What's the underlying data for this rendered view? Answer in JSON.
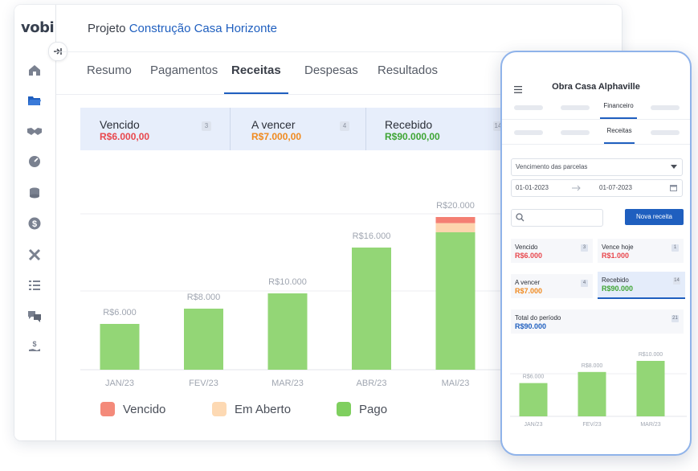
{
  "desktop": {
    "logo": "vobi",
    "project_prefix": "Projeto",
    "project_name": "Construção Casa Horizonte",
    "tabs": [
      {
        "label": "Resumo"
      },
      {
        "label": "Pagamentos"
      },
      {
        "label": "Receitas",
        "active": true
      },
      {
        "label": "Despesas"
      },
      {
        "label": "Resultados"
      }
    ],
    "sidebar_icons": [
      "home-icon",
      "folder-icon",
      "handshake-icon",
      "gauge-icon",
      "coins-icon",
      "dollar-icon",
      "tools-icon",
      "list-icon",
      "chat-icon",
      "money-hand-icon"
    ],
    "status_cards": [
      {
        "label": "Vencido",
        "value": "R$6.000,00",
        "count": "3",
        "color": "#e8474d"
      },
      {
        "label": "A vencer",
        "value": "R$7.000,00",
        "count": "4",
        "color": "#f08a1f"
      },
      {
        "label": "Recebido",
        "value": "R$90.000,00",
        "count": "14",
        "color": "#3fa535"
      }
    ],
    "legend": [
      {
        "label": "Vencido",
        "color": "#f48a7a"
      },
      {
        "label": "Em Aberto",
        "color": "#fdd9b3"
      },
      {
        "label": "Pago",
        "color": "#7fcf5f"
      }
    ]
  },
  "chart_data": [
    {
      "type": "bar",
      "categories": [
        "JAN/23",
        "FEV/23",
        "MAR/23",
        "ABR/23",
        "MAI/23"
      ],
      "data_labels": [
        "R$6.000",
        "R$8.000",
        "R$10.000",
        "R$16.000",
        "R$20.000"
      ],
      "series": [
        {
          "name": "Pago",
          "color": "#93d676",
          "values": [
            6000,
            8000,
            10000,
            16000,
            18000
          ]
        },
        {
          "name": "Em Aberto",
          "color": "#fdd5ae",
          "values": [
            0,
            0,
            0,
            0,
            1200
          ]
        },
        {
          "name": "Vencido",
          "color": "#f47f73",
          "values": [
            0,
            0,
            0,
            0,
            800
          ]
        }
      ],
      "ylim": [
        0,
        20000
      ],
      "grid": true
    },
    {
      "type": "bar",
      "categories": [
        "JAN/23",
        "FEV/23",
        "MAR/23"
      ],
      "data_labels": [
        "R$6.000",
        "R$8.000",
        "R$10.000"
      ],
      "series": [
        {
          "name": "Pago",
          "color": "#93d676",
          "values": [
            6000,
            8000,
            10000
          ]
        }
      ],
      "ylim": [
        0,
        10000
      ],
      "grid": true
    }
  ],
  "phone": {
    "title": "Obra Casa Alphaville",
    "tab_top": "Financeiro",
    "tab_sub": "Receitas",
    "select_label": "Vencimento das parcelas",
    "date_from": "01-01-2023",
    "date_to": "01-07-2023",
    "new_button": "Nova receita",
    "cards": [
      {
        "label": "Vencido",
        "value": "R$6.000",
        "count": "3",
        "color": "#e8474d"
      },
      {
        "label": "Vence hoje",
        "value": "R$1.000",
        "count": "1",
        "color": "#e8474d"
      },
      {
        "label": "A vencer",
        "value": "R$7.000",
        "count": "4",
        "color": "#f08a1f"
      },
      {
        "label": "Recebido",
        "value": "R$90.000",
        "count": "14",
        "color": "#3fa535"
      }
    ],
    "total_label": "Total do período",
    "total_value": "R$90.000",
    "total_count": "21",
    "total_color": "#1f5fbf"
  }
}
